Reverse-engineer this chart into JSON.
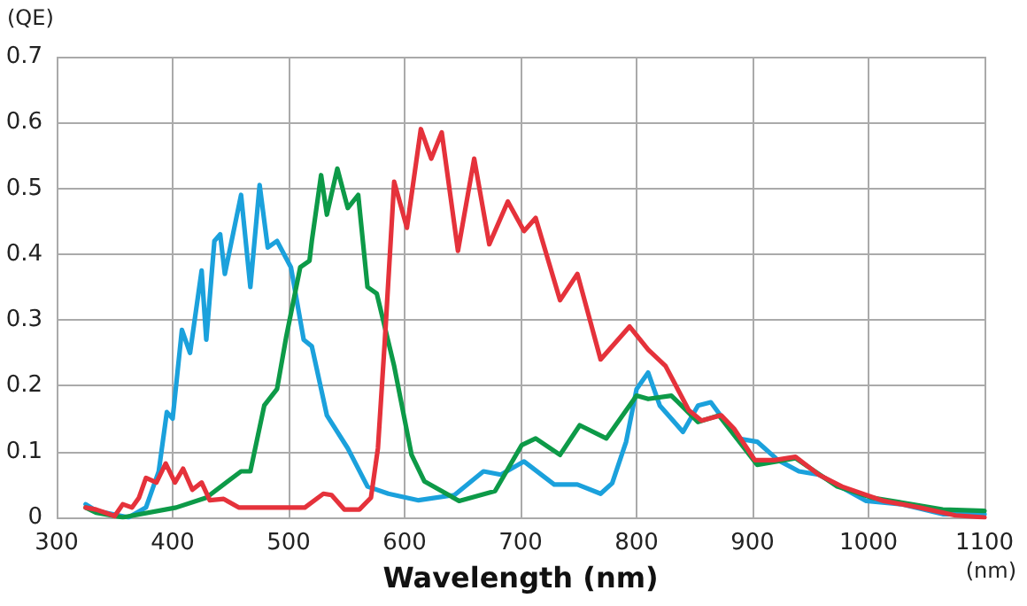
{
  "chart_data": {
    "type": "line",
    "xlabel": "Wavelength (nm)",
    "ylabel": "(QE)",
    "annotations": [
      "(nm)"
    ],
    "xlim": [
      300,
      1100
    ],
    "xticks": [
      300,
      400,
      500,
      600,
      700,
      800,
      900,
      1000,
      1100
    ],
    "ylim": [
      0,
      0.7
    ],
    "yticks": [
      0,
      0.1,
      0.2,
      0.3,
      0.4,
      0.5,
      0.6,
      0.7
    ],
    "grid": true,
    "marker": "none",
    "line_style": "solid",
    "series": [
      {
        "color": "#1ba1dc",
        "x": [
          325,
          334,
          362,
          377,
          388,
          395,
          400,
          408,
          415,
          425,
          429,
          436,
          441,
          445,
          459,
          467,
          475,
          482,
          490,
          502,
          513,
          520,
          533,
          551,
          568,
          586,
          612,
          643,
          668,
          683,
          703,
          729,
          749,
          769,
          779,
          791,
          800,
          810,
          820,
          840,
          853,
          864,
          887,
          904,
          922,
          940,
          957,
          998,
          1029,
          1064,
          1100
        ],
        "values": [
          0.02,
          0.01,
          0,
          0.015,
          0.07,
          0.16,
          0.15,
          0.285,
          0.25,
          0.375,
          0.27,
          0.42,
          0.43,
          0.37,
          0.49,
          0.35,
          0.505,
          0.41,
          0.42,
          0.38,
          0.27,
          0.26,
          0.155,
          0.105,
          0.047,
          0.036,
          0.026,
          0.034,
          0.07,
          0.065,
          0.085,
          0.05,
          0.05,
          0.036,
          0.052,
          0.115,
          0.195,
          0.22,
          0.17,
          0.13,
          0.17,
          0.175,
          0.12,
          0.115,
          0.087,
          0.07,
          0.065,
          0.025,
          0.02,
          0.005,
          0.005
        ]
      },
      {
        "color": "#0d9a48",
        "x": [
          325,
          334,
          357,
          403,
          429,
          459,
          467,
          479,
          490,
          498,
          510,
          518,
          520,
          528,
          533,
          542,
          551,
          560,
          568,
          576,
          591,
          606,
          617,
          647,
          678,
          701,
          713,
          734,
          751,
          774,
          800,
          810,
          830,
          853,
          871,
          904,
          937,
          973,
          1003,
          1064,
          1100
        ],
        "values": [
          0.015,
          0.007,
          0,
          0.015,
          0.03,
          0.07,
          0.07,
          0.17,
          0.195,
          0.275,
          0.38,
          0.39,
          0.42,
          0.52,
          0.46,
          0.53,
          0.47,
          0.49,
          0.35,
          0.34,
          0.23,
          0.095,
          0.055,
          0.025,
          0.04,
          0.11,
          0.12,
          0.095,
          0.14,
          0.12,
          0.185,
          0.18,
          0.185,
          0.145,
          0.155,
          0.08,
          0.09,
          0.047,
          0.03,
          0.012,
          0.01
        ]
      },
      {
        "color": "#e5323b",
        "x": [
          325,
          334,
          342,
          350,
          357,
          365,
          371,
          377,
          386,
          394,
          402,
          409,
          417,
          425,
          432,
          444,
          457,
          479,
          514,
          530,
          537,
          548,
          561,
          571,
          577,
          583,
          591,
          602,
          614,
          623,
          632,
          646,
          660,
          673,
          689,
          703,
          713,
          734,
          749,
          769,
          794,
          810,
          825,
          845,
          856,
          873,
          884,
          902,
          919,
          937,
          957,
          977,
          1013,
          1044,
          1075,
          1100
        ],
        "values": [
          0.015,
          0.012,
          0.007,
          0.002,
          0.02,
          0.015,
          0.03,
          0.06,
          0.053,
          0.082,
          0.053,
          0.074,
          0.042,
          0.053,
          0.026,
          0.028,
          0.015,
          0.015,
          0.015,
          0.036,
          0.034,
          0.012,
          0.012,
          0.03,
          0.105,
          0.27,
          0.51,
          0.44,
          0.59,
          0.545,
          0.585,
          0.405,
          0.545,
          0.415,
          0.48,
          0.435,
          0.455,
          0.33,
          0.37,
          0.24,
          0.29,
          0.255,
          0.23,
          0.163,
          0.147,
          0.155,
          0.135,
          0.087,
          0.087,
          0.092,
          0.065,
          0.047,
          0.025,
          0.015,
          0.003,
          0
        ]
      }
    ]
  }
}
